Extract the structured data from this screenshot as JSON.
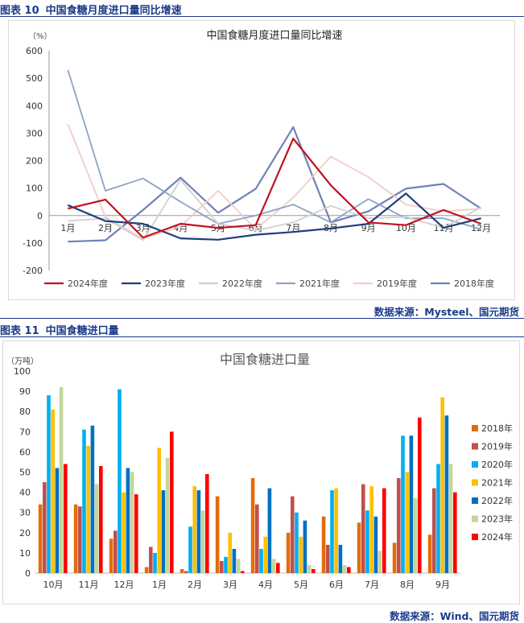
{
  "figures": [
    {
      "caption_num": "图表 10",
      "caption_title": "中国食糖月度进口量同比增速",
      "source": "数据来源：Mysteel、国元期货"
    },
    {
      "caption_num": "图表 11",
      "caption_title": "中国食糖进口量",
      "source": "数据来源：Wind、国元期货"
    }
  ],
  "colors": {
    "caption": "#1a3a8a",
    "line_2024": "#c0121f",
    "line_2023": "#1f3f7a",
    "line_2022": "#d0d0d0",
    "line_2021": "#8fa3c3",
    "line_2019": "#f0cccc",
    "line_2018": "#6e82b6",
    "bar_2018": "#e36c0a",
    "bar_2019": "#c0504d",
    "bar_2020": "#00b0f0",
    "bar_2021": "#ffc000",
    "bar_2022": "#0070c0",
    "bar_2023": "#c3d69b",
    "bar_2024": "#ff0000"
  },
  "chart_data": [
    {
      "type": "line",
      "title": "中国食糖月度进口量同比增速",
      "unit_label": "（%）",
      "categories": [
        "1月",
        "2月",
        "3月",
        "4月",
        "5月",
        "6月",
        "7月",
        "8月",
        "9月",
        "10月",
        "11月",
        "12月"
      ],
      "ylim": [
        -200,
        600
      ],
      "yticks": [
        600,
        500,
        400,
        300,
        200,
        100,
        0,
        -100,
        -200
      ],
      "grid": false,
      "legend_position": "bottom",
      "series": [
        {
          "name": "2024年度",
          "color": "#c0121f",
          "width": 2.2,
          "values": [
            25,
            58,
            -80,
            -30,
            -45,
            -35,
            280,
            110,
            -25,
            -35,
            20,
            -30
          ]
        },
        {
          "name": "2023年度",
          "color": "#1f3f7a",
          "width": 2.2,
          "values": [
            38,
            -20,
            -30,
            -83,
            -88,
            -70,
            -60,
            -47,
            -30,
            80,
            -45,
            -10
          ]
        },
        {
          "name": "2022年度",
          "color": "#d0d0d0",
          "width": 1.8,
          "values": [
            -20,
            -10,
            -90,
            130,
            -30,
            -55,
            -25,
            35,
            -10,
            -5,
            -45,
            30
          ]
        },
        {
          "name": "2021年度",
          "color": "#8fa3c3",
          "width": 1.8,
          "values": [
            530,
            90,
            135,
            50,
            -30,
            0,
            40,
            -25,
            60,
            -10,
            -10,
            -50
          ]
        },
        {
          "name": "2019年度",
          "color": "#f0cccc",
          "width": 1.8,
          "values": [
            333,
            -5,
            -85,
            -40,
            90,
            -50,
            65,
            215,
            140,
            40,
            15,
            25
          ]
        },
        {
          "name": "2018年度",
          "color": "#6e82b6",
          "width": 2.2,
          "values": [
            -95,
            -90,
            20,
            138,
            10,
            97,
            322,
            -25,
            15,
            98,
            115,
            25
          ]
        }
      ]
    },
    {
      "type": "bar",
      "title": "中国食糖进口量",
      "unit_label": "（万吨）",
      "categories": [
        "10月",
        "11月",
        "12月",
        "1月",
        "2月",
        "3月",
        "4月",
        "5月",
        "6月",
        "7月",
        "8月",
        "9月"
      ],
      "ylim": [
        0,
        100
      ],
      "yticks": [
        100,
        90,
        80,
        70,
        60,
        50,
        40,
        30,
        20,
        10,
        0
      ],
      "grid": false,
      "legend_position": "right",
      "series": [
        {
          "name": "2018年",
          "color": "#e36c0a",
          "values": [
            34,
            34,
            17,
            3,
            2,
            38,
            47,
            20,
            28,
            25,
            15,
            19
          ]
        },
        {
          "name": "2019年",
          "color": "#c0504d",
          "values": [
            45,
            33,
            21,
            13,
            1,
            6,
            34,
            38,
            14,
            44,
            47,
            42
          ]
        },
        {
          "name": "2020年",
          "color": "#00b0f0",
          "values": [
            88,
            71,
            91,
            10,
            23,
            8,
            12,
            30,
            41,
            31,
            68,
            54
          ]
        },
        {
          "name": "2021年",
          "color": "#ffc000",
          "values": [
            81,
            63,
            40,
            62,
            43,
            20,
            18,
            18,
            42,
            43,
            50,
            87
          ]
        },
        {
          "name": "2022年",
          "color": "#0070c0",
          "values": [
            52,
            73,
            52,
            41,
            41,
            12,
            42,
            26,
            14,
            28,
            68,
            78
          ]
        },
        {
          "name": "2023年",
          "color": "#c3d69b",
          "values": [
            92,
            44,
            50,
            57,
            31,
            7,
            7,
            4,
            4,
            11,
            37,
            54
          ]
        },
        {
          "name": "2024年",
          "color": "#ff0000",
          "values": [
            54,
            53,
            39,
            70,
            49,
            1,
            5,
            2,
            3,
            42,
            77,
            40
          ]
        }
      ]
    }
  ]
}
